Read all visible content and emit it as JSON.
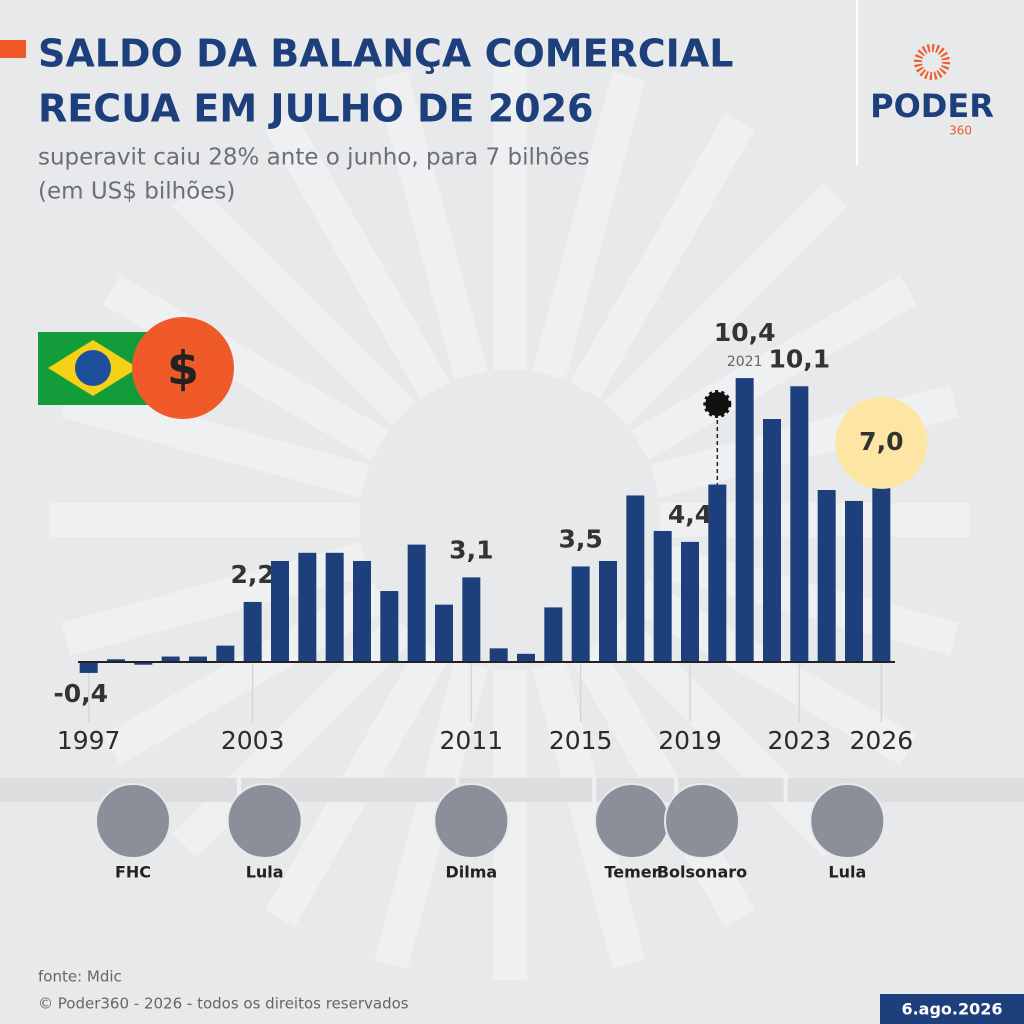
{
  "chart_data": {
    "type": "bar",
    "title": [
      "SALDO DA BALANÇA COMERCIAL",
      "RECUA EM JULHO DE 2026"
    ],
    "subtitle": [
      "superavit caiu 28% ante o junho, para 7 bilhões",
      "(em US$ bilhões)"
    ],
    "x": [
      1997,
      1998,
      1999,
      2000,
      2001,
      2002,
      2003,
      2004,
      2005,
      2006,
      2007,
      2008,
      2009,
      2010,
      2011,
      2012,
      2013,
      2014,
      2015,
      2016,
      2017,
      2018,
      2019,
      2020,
      2021,
      2022,
      2023,
      2024,
      2025,
      2026
    ],
    "values": [
      -0.4,
      0.1,
      -0.1,
      0.2,
      0.2,
      0.6,
      2.2,
      3.7,
      4.0,
      4.0,
      3.7,
      2.6,
      4.3,
      2.1,
      3.1,
      0.5,
      0.3,
      2.0,
      3.5,
      3.7,
      6.1,
      4.8,
      4.4,
      6.5,
      10.4,
      8.9,
      10.1,
      6.3,
      5.9,
      7.0
    ],
    "value_labels": [
      "-0,4",
      null,
      null,
      null,
      null,
      null,
      "2,2",
      null,
      null,
      null,
      null,
      null,
      null,
      null,
      "3,1",
      null,
      null,
      null,
      "3,5",
      null,
      null,
      null,
      "4,4",
      null,
      "10,4",
      null,
      "10,1",
      null,
      null,
      "7,0"
    ],
    "xlim": [
      1996.5,
      2026.5
    ],
    "xticks": [
      1997,
      2003,
      2011,
      2015,
      2019,
      2023,
      2026
    ],
    "color": "#1d3f7c",
    "negative_label_color": "#b3262b",
    "highlight_color": "#f05a28",
    "highlight_bg": "#fde5a3",
    "annotations": [
      {
        "x": 2021,
        "text": "2021"
      }
    ],
    "presidents": [
      {
        "name": "FHC",
        "from": 1997,
        "to": 2002
      },
      {
        "name": "Lula",
        "from": 2003,
        "to": 2010
      },
      {
        "name": "Dilma",
        "from": 2011,
        "to": 2015
      },
      {
        "name": "Temer",
        "from": 2016,
        "to": 2018
      },
      {
        "name": "Bolsonaro",
        "from": 2019,
        "to": 2022
      },
      {
        "name": "Lula",
        "from": 2023,
        "to": 2026
      }
    ]
  },
  "icon": "$",
  "logo": {
    "name": "PODER",
    "sub": "360"
  },
  "source": "fonte: Mdic",
  "copyright": "© Poder360 - 2026 - todos os direitos reservados",
  "date": "6.ago.2026"
}
